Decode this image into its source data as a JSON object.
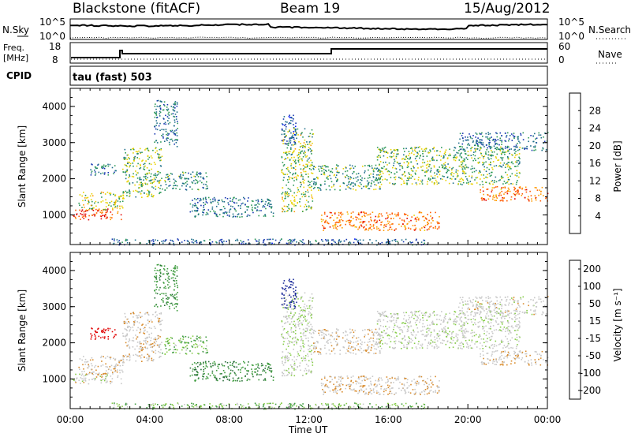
{
  "header": {
    "station": "Blackstone (fitACF)",
    "beam": "Beam 19",
    "date": "15/Aug/2012"
  },
  "noise_panel": {
    "left_label": "N.Sky",
    "right_label": "N.Search",
    "left_ticks": [
      "10^5",
      "10^0"
    ],
    "right_ticks": [
      "10^5",
      "10^0"
    ]
  },
  "freq_panel": {
    "left_label_1": "Freq.",
    "left_label_2": "[MHz]",
    "right_label": "Nave",
    "left_ticks": [
      "18",
      "8"
    ],
    "right_ticks": [
      "60",
      "0"
    ]
  },
  "cpid_label": "CPID",
  "cpid_text": "tau (fast) 503",
  "x_axis": {
    "title": "Time UT",
    "ticks": [
      "00:00",
      "04:00",
      "08:00",
      "12:00",
      "16:00",
      "20:00",
      "00:00"
    ]
  },
  "panel_power": {
    "ylabel": "Slant Range [km]",
    "yticks": [
      "4000",
      "3000",
      "2000",
      "1000"
    ],
    "colorbar_label": "Power [dB]",
    "colorbar_ticks": [
      "28",
      "24",
      "20",
      "16",
      "12",
      "8",
      "4"
    ],
    "colorbar_colors": [
      "#e00000",
      "#ff5a00",
      "#ff9a00",
      "#e8d200",
      "#2e9a57",
      "#1f6f8a",
      "#1536b0",
      "#0015ff"
    ]
  },
  "panel_velocity": {
    "ylabel": "Slant Range [km]",
    "yticks": [
      "4000",
      "3000",
      "2000",
      "1000"
    ],
    "colorbar_label": "Velocity [m s⁻¹]",
    "colorbar_ticks": [
      "200",
      "100",
      "50",
      "15",
      "-15",
      "-50",
      "-100",
      "-200"
    ],
    "colorbar_colors": [
      "#1a2a9a",
      "#2a6e3a",
      "#3f9c3f",
      "#86cc48",
      "#c8c8c8",
      "#d88a2a",
      "#f06a10",
      "#e00000"
    ]
  },
  "chart_data": {
    "type": "heatmap",
    "x_range": [
      "00:00",
      "24:00"
    ],
    "y_range_km": [
      180,
      4500
    ],
    "power_dB_range": [
      0,
      30
    ],
    "velocity_range": [
      -250,
      250
    ],
    "scatter_regions": [
      {
        "t0": 0.0,
        "t1": 2.6,
        "r0": 880,
        "r1": 1180,
        "power": 27,
        "velocity": 0
      },
      {
        "t0": 0.4,
        "t1": 2.7,
        "r0": 1150,
        "r1": 1650,
        "power": 16,
        "velocity": -10
      },
      {
        "t0": 1.0,
        "t1": 2.3,
        "r0": 2100,
        "r1": 2450,
        "power": 10,
        "velocity": -120
      },
      {
        "t0": 2.6,
        "t1": 4.6,
        "r0": 1500,
        "r1": 2900,
        "power": 14,
        "velocity": -5
      },
      {
        "t0": 4.6,
        "t1": 6.9,
        "r0": 1700,
        "r1": 2200,
        "power": 11,
        "velocity": 30
      },
      {
        "t0": 4.2,
        "t1": 5.4,
        "r0": 2900,
        "r1": 4200,
        "power": 8,
        "velocity": 60
      },
      {
        "t0": 6.0,
        "t1": 10.2,
        "r0": 950,
        "r1": 1500,
        "power": 9,
        "velocity": 70
      },
      {
        "t0": 10.6,
        "t1": 12.2,
        "r0": 1100,
        "r1": 3400,
        "power": 15,
        "velocity": 10
      },
      {
        "t0": 10.6,
        "t1": 11.4,
        "r0": 2950,
        "r1": 3800,
        "power": 6,
        "velocity": 220
      },
      {
        "t0": 12.2,
        "t1": 15.6,
        "r0": 1700,
        "r1": 2400,
        "power": 12,
        "velocity": -5
      },
      {
        "t0": 12.6,
        "t1": 18.6,
        "r0": 580,
        "r1": 1100,
        "power": 24,
        "velocity": -8
      },
      {
        "t0": 15.4,
        "t1": 22.6,
        "r0": 1850,
        "r1": 2900,
        "power": 14,
        "velocity": 5
      },
      {
        "t0": 20.6,
        "t1": 24.0,
        "r0": 1400,
        "r1": 1800,
        "power": 24,
        "velocity": -8
      },
      {
        "t0": 19.5,
        "t1": 24.0,
        "r0": 2800,
        "r1": 3300,
        "power": 8,
        "velocity": 0
      },
      {
        "t0": 2.0,
        "t1": 18.0,
        "r0": 180,
        "r1": 350,
        "power": 7,
        "velocity": 30
      }
    ]
  }
}
